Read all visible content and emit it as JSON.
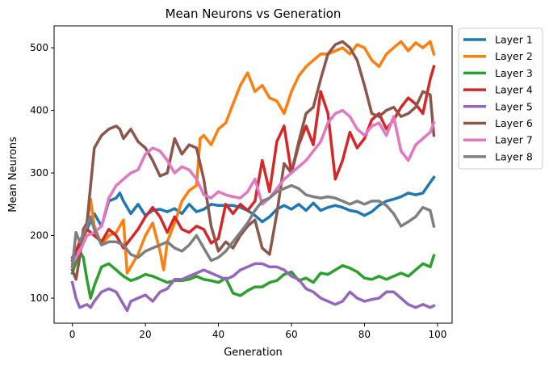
{
  "chart_data": {
    "type": "line",
    "title": "Mean Neurons vs Generation",
    "xlabel": "Generation",
    "ylabel": "Mean Neurons",
    "xlim": [
      -5,
      104
    ],
    "ylim": [
      60,
      535
    ],
    "xticks": [
      0,
      20,
      40,
      60,
      80,
      100
    ],
    "yticks": [
      100,
      200,
      300,
      400,
      500
    ],
    "grid": false,
    "legend_position": "outside-right",
    "series": [
      {
        "name": "Layer 1",
        "color": "#1f77b4",
        "x": [
          0,
          2,
          4,
          6,
          8,
          10,
          12,
          13,
          14,
          16,
          18,
          20,
          22,
          24,
          26,
          28,
          30,
          32,
          34,
          36,
          38,
          40,
          42,
          44,
          46,
          48,
          50,
          52,
          54,
          56,
          58,
          60,
          62,
          64,
          66,
          68,
          70,
          72,
          74,
          76,
          78,
          80,
          82,
          84,
          86,
          88,
          90,
          92,
          94,
          96,
          98,
          99
        ],
        "values": [
          165,
          185,
          210,
          235,
          215,
          255,
          260,
          268,
          255,
          235,
          250,
          232,
          240,
          242,
          238,
          243,
          235,
          250,
          238,
          242,
          250,
          248,
          248,
          248,
          245,
          240,
          232,
          222,
          230,
          242,
          248,
          242,
          250,
          240,
          252,
          240,
          245,
          248,
          245,
          240,
          238,
          232,
          238,
          248,
          255,
          258,
          262,
          268,
          265,
          268,
          285,
          293
        ]
      },
      {
        "name": "Layer 2",
        "color": "#ff7f0e",
        "x": [
          0,
          2,
          4,
          5,
          6,
          8,
          10,
          12,
          14,
          15,
          16,
          18,
          20,
          22,
          24,
          25,
          26,
          28,
          30,
          32,
          34,
          35,
          36,
          38,
          40,
          42,
          44,
          46,
          48,
          50,
          52,
          54,
          56,
          58,
          60,
          62,
          64,
          66,
          68,
          70,
          72,
          74,
          76,
          78,
          80,
          82,
          84,
          86,
          88,
          90,
          92,
          94,
          96,
          98,
          99
        ],
        "values": [
          150,
          170,
          215,
          258,
          215,
          185,
          200,
          205,
          225,
          140,
          150,
          170,
          200,
          220,
          175,
          145,
          190,
          220,
          255,
          272,
          280,
          355,
          360,
          345,
          370,
          380,
          410,
          440,
          460,
          430,
          440,
          420,
          415,
          395,
          430,
          455,
          470,
          480,
          490,
          490,
          495,
          500,
          490,
          505,
          500,
          480,
          470,
          490,
          500,
          510,
          495,
          508,
          500,
          510,
          490
        ]
      },
      {
        "name": "Layer 3",
        "color": "#2ca02c",
        "x": [
          0,
          2,
          3,
          4,
          5,
          6,
          8,
          10,
          12,
          14,
          16,
          18,
          20,
          22,
          24,
          26,
          28,
          30,
          32,
          34,
          36,
          38,
          40,
          42,
          44,
          46,
          48,
          50,
          52,
          54,
          56,
          58,
          60,
          62,
          64,
          66,
          68,
          70,
          72,
          74,
          76,
          78,
          80,
          82,
          84,
          86,
          88,
          90,
          92,
          94,
          96,
          98,
          99
        ],
        "values": [
          140,
          175,
          165,
          130,
          100,
          120,
          150,
          155,
          145,
          135,
          128,
          132,
          138,
          135,
          130,
          125,
          128,
          128,
          130,
          135,
          130,
          128,
          125,
          132,
          108,
          104,
          112,
          118,
          118,
          125,
          128,
          138,
          142,
          128,
          132,
          125,
          140,
          138,
          145,
          152,
          148,
          142,
          132,
          130,
          135,
          130,
          135,
          140,
          135,
          145,
          155,
          150,
          168
        ]
      },
      {
        "name": "Layer 4",
        "color": "#d62728",
        "x": [
          0,
          2,
          4,
          6,
          8,
          10,
          12,
          14,
          16,
          18,
          20,
          22,
          24,
          26,
          28,
          30,
          32,
          34,
          36,
          38,
          40,
          42,
          44,
          46,
          48,
          50,
          52,
          54,
          56,
          58,
          60,
          62,
          64,
          66,
          68,
          70,
          72,
          74,
          76,
          78,
          80,
          82,
          84,
          86,
          88,
          90,
          92,
          94,
          96,
          98,
          99
        ],
        "values": [
          160,
          190,
          210,
          200,
          190,
          210,
          200,
          180,
          195,
          210,
          230,
          245,
          230,
          205,
          230,
          210,
          205,
          215,
          210,
          188,
          195,
          250,
          235,
          250,
          240,
          255,
          320,
          270,
          350,
          375,
          300,
          345,
          375,
          345,
          430,
          395,
          290,
          320,
          365,
          340,
          355,
          385,
          395,
          370,
          385,
          405,
          420,
          410,
          395,
          450,
          470
        ]
      },
      {
        "name": "Layer 5",
        "color": "#9467bd",
        "x": [
          0,
          1,
          2,
          4,
          5,
          6,
          8,
          10,
          12,
          14,
          15,
          16,
          18,
          20,
          22,
          24,
          26,
          28,
          30,
          32,
          34,
          36,
          38,
          40,
          42,
          44,
          46,
          48,
          50,
          52,
          54,
          56,
          58,
          60,
          62,
          64,
          66,
          68,
          70,
          72,
          74,
          76,
          78,
          80,
          82,
          84,
          86,
          88,
          90,
          92,
          94,
          96,
          98,
          99
        ],
        "values": [
          125,
          100,
          85,
          90,
          85,
          95,
          110,
          115,
          110,
          90,
          80,
          95,
          100,
          105,
          95,
          110,
          115,
          130,
          130,
          135,
          140,
          145,
          140,
          135,
          130,
          135,
          145,
          150,
          155,
          155,
          150,
          150,
          145,
          135,
          130,
          115,
          110,
          100,
          95,
          90,
          95,
          110,
          100,
          95,
          98,
          100,
          110,
          110,
          100,
          90,
          85,
          90,
          85,
          88
        ]
      },
      {
        "name": "Layer 6",
        "color": "#8c564b",
        "x": [
          0,
          1,
          2,
          3,
          4,
          6,
          8,
          10,
          12,
          13,
          14,
          16,
          18,
          20,
          22,
          24,
          26,
          28,
          30,
          32,
          34,
          36,
          38,
          40,
          42,
          44,
          46,
          48,
          50,
          52,
          54,
          56,
          58,
          60,
          62,
          64,
          66,
          68,
          70,
          72,
          74,
          76,
          78,
          80,
          82,
          84,
          86,
          88,
          90,
          92,
          94,
          96,
          98,
          99
        ],
        "values": [
          145,
          130,
          165,
          210,
          220,
          340,
          360,
          370,
          375,
          370,
          355,
          370,
          350,
          340,
          320,
          295,
          300,
          355,
          330,
          345,
          340,
          290,
          215,
          175,
          190,
          180,
          200,
          215,
          225,
          180,
          170,
          235,
          315,
          300,
          350,
          395,
          405,
          450,
          490,
          505,
          510,
          500,
          480,
          440,
          395,
          390,
          400,
          405,
          390,
          395,
          405,
          430,
          425,
          360
        ]
      },
      {
        "name": "Layer 7",
        "color": "#e377c2",
        "x": [
          0,
          2,
          4,
          6,
          8,
          10,
          12,
          14,
          16,
          18,
          20,
          22,
          24,
          26,
          28,
          30,
          32,
          34,
          36,
          38,
          40,
          42,
          44,
          46,
          48,
          50,
          52,
          54,
          56,
          58,
          60,
          62,
          64,
          66,
          68,
          70,
          72,
          74,
          76,
          78,
          80,
          82,
          84,
          86,
          88,
          90,
          92,
          94,
          96,
          98,
          99
        ],
        "values": [
          155,
          175,
          200,
          205,
          215,
          260,
          280,
          290,
          300,
          305,
          330,
          340,
          335,
          320,
          300,
          310,
          305,
          290,
          265,
          260,
          270,
          265,
          262,
          260,
          270,
          290,
          250,
          260,
          275,
          290,
          300,
          310,
          320,
          335,
          350,
          380,
          395,
          400,
          390,
          370,
          360,
          375,
          380,
          360,
          390,
          335,
          320,
          345,
          355,
          365,
          380
        ]
      },
      {
        "name": "Layer 8",
        "color": "#7f7f7f",
        "x": [
          0,
          1,
          2,
          4,
          5,
          6,
          8,
          10,
          12,
          14,
          16,
          18,
          20,
          22,
          24,
          26,
          28,
          30,
          32,
          34,
          36,
          38,
          40,
          42,
          44,
          46,
          48,
          50,
          52,
          54,
          56,
          58,
          60,
          62,
          64,
          66,
          68,
          70,
          72,
          74,
          76,
          78,
          80,
          82,
          84,
          86,
          88,
          90,
          92,
          94,
          96,
          98,
          99
        ],
        "values": [
          150,
          205,
          190,
          215,
          230,
          210,
          185,
          190,
          190,
          185,
          170,
          165,
          175,
          180,
          185,
          190,
          180,
          175,
          185,
          200,
          180,
          160,
          165,
          175,
          190,
          205,
          220,
          240,
          255,
          260,
          270,
          275,
          280,
          275,
          265,
          262,
          260,
          262,
          260,
          255,
          250,
          255,
          250,
          255,
          255,
          248,
          235,
          215,
          222,
          230,
          245,
          240,
          215
        ]
      }
    ]
  }
}
